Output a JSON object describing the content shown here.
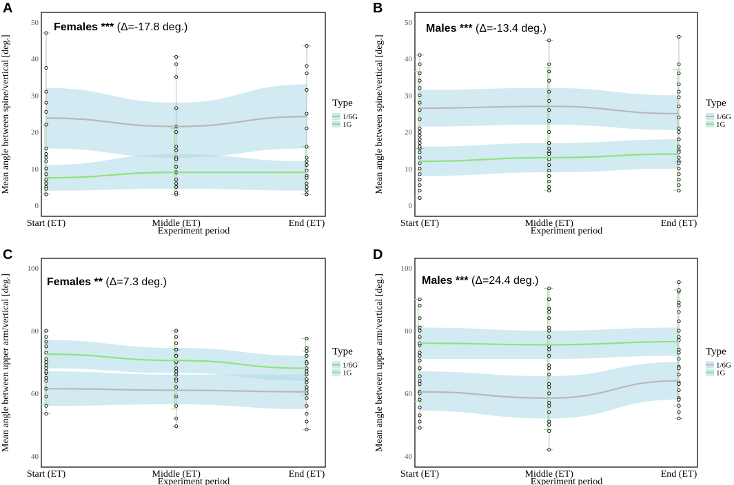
{
  "chart_data": [
    {
      "type": "line",
      "panel": "A",
      "annotation": {
        "prefix": "Females ***",
        "suffix": " (Δ=-17.8 deg.)"
      },
      "xlabel": "Experiment period",
      "ylabel": "Mean angle between spine/vertical [deg.]",
      "categories": [
        "Start (ET)",
        "Middle (ET)",
        "End (ET)"
      ],
      "ylim": [
        0,
        50
      ],
      "yticks": [
        0,
        10,
        20,
        30,
        40,
        50
      ],
      "legend": {
        "title": "Type",
        "position": "right"
      },
      "series": [
        {
          "name": "1/6G",
          "color": "#b8b8b8",
          "values": [
            23.8,
            21.5,
            24.2
          ],
          "band_lower": [
            15.5,
            13.0,
            15.5
          ],
          "band_upper": [
            32.0,
            28.0,
            33.0
          ],
          "err_low": [
            3,
            3,
            3
          ],
          "err_high": [
            47,
            40.5,
            43.5
          ],
          "points": [
            [
              3,
              5,
              7,
              10,
              13,
              15.5,
              22,
              25.5,
              28,
              31,
              37.5,
              47
            ],
            [
              3,
              6,
              9,
              13,
              16,
              20,
              21.5,
              26.5,
              35,
              38.5,
              40.5
            ],
            [
              3,
              5,
              8,
              12,
              16,
              21,
              25,
              31.5,
              36,
              38,
              43.5
            ]
          ]
        },
        {
          "name": "1G",
          "color": "#8fe37d",
          "values": [
            7.5,
            9.0,
            9.0
          ],
          "band_lower": [
            4.0,
            4.5,
            4.0
          ],
          "band_upper": [
            11.0,
            14.0,
            12.0
          ],
          "err_low": [
            3,
            3,
            3
          ],
          "err_high": [
            22,
            21,
            16
          ],
          "points": [
            [
              3,
              4.5,
              6,
              7,
              8.5,
              10,
              12,
              14
            ],
            [
              3.5,
              5,
              7,
              9,
              10.5,
              12.5,
              15
            ],
            [
              3,
              4,
              6,
              7.5,
              9.5,
              11,
              13
            ]
          ]
        }
      ]
    },
    {
      "type": "line",
      "panel": "B",
      "annotation": {
        "prefix": "Males ***",
        "suffix": " (Δ=-13.4 deg.)"
      },
      "xlabel": "Experiment period",
      "ylabel": "Mean angle between spine/vertical [deg.]",
      "categories": [
        "Start (ET)",
        "Middle (ET)",
        "End (ET)"
      ],
      "ylim": [
        0,
        50
      ],
      "yticks": [
        0,
        10,
        20,
        30,
        40,
        50
      ],
      "legend": {
        "title": "Type",
        "position": "right"
      },
      "series": [
        {
          "name": "1/6G",
          "color": "#b8b8b8",
          "values": [
            26.5,
            27.0,
            25.0
          ],
          "band_lower": [
            21.5,
            22.0,
            20.5
          ],
          "band_upper": [
            31.5,
            32.0,
            30.0
          ],
          "err_low": [
            15.5,
            14.5,
            12
          ],
          "err_high": [
            41,
            45,
            46
          ],
          "points": [
            [
              15.5,
              17,
              19,
              21,
              23.5,
              26,
              28,
              30,
              32,
              34,
              36,
              38.5,
              41
            ],
            [
              14.5,
              17,
              20,
              23,
              26,
              28.5,
              31,
              34,
              36.5,
              38.5,
              45
            ],
            [
              12,
              15,
              18,
              21,
              24,
              27,
              29.5,
              31,
              33,
              36,
              38.5,
              46
            ]
          ]
        },
        {
          "name": "1G",
          "color": "#8fe37d",
          "values": [
            12.0,
            13.0,
            14.0
          ],
          "band_lower": [
            8.0,
            9.0,
            10.0
          ],
          "band_upper": [
            16.0,
            17.0,
            18.0
          ],
          "err_low": [
            2,
            4,
            4
          ],
          "err_high": [
            36.5,
            37.5,
            37
          ],
          "points": [
            [
              2,
              4,
              5.5,
              7,
              8.5,
              10,
              11.5,
              13,
              14.5,
              16,
              18,
              20
            ],
            [
              4,
              5,
              6.5,
              8,
              9.5,
              11,
              12.5,
              14,
              15.5,
              17
            ],
            [
              4,
              5.5,
              7,
              8.5,
              10,
              11.5,
              13,
              14.5,
              16,
              18,
              20
            ]
          ]
        }
      ]
    },
    {
      "type": "line",
      "panel": "C",
      "annotation": {
        "prefix": "Females **",
        "suffix": " (Δ=7.3 deg.)"
      },
      "xlabel": "Experiment period",
      "ylabel": "Mean angle between upper arm/vertical [deg.]",
      "categories": [
        "Start (ET)",
        "Middle (ET)",
        "End (ET)"
      ],
      "ylim": [
        40,
        100
      ],
      "yticks": [
        40,
        60,
        80,
        100
      ],
      "legend": {
        "title": "Type",
        "position": "right"
      },
      "series": [
        {
          "name": "1/6G",
          "color": "#b8b8b8",
          "values": [
            61.5,
            61.0,
            60.5
          ],
          "band_lower": [
            56.0,
            56.5,
            55.0
          ],
          "band_upper": [
            67.0,
            66.0,
            66.0
          ],
          "err_low": [
            53.5,
            49.5,
            48.5
          ],
          "err_high": [
            70,
            74,
            73.5
          ],
          "points": [
            [
              53.5,
              56,
              59,
              61.5,
              64,
              66.5,
              68,
              70
            ],
            [
              49.5,
              52,
              56,
              59,
              62,
              64.5,
              67,
              70,
              72,
              74
            ],
            [
              48.5,
              51,
              53.5,
              56,
              58.5,
              61,
              63.5,
              66,
              68,
              70,
              72,
              73.5
            ]
          ]
        },
        {
          "name": "1G",
          "color": "#8fe37d",
          "values": [
            72.5,
            70.5,
            68.0
          ],
          "band_lower": [
            68.0,
            66.5,
            64.0
          ],
          "band_upper": [
            77.0,
            74.5,
            72.0
          ],
          "err_low": [
            56.5,
            55,
            59.5
          ],
          "err_high": [
            80,
            80,
            77.5
          ],
          "points": [
            [
              65,
              67,
              69,
              71,
              73,
              75,
              76.5,
              78,
              80
            ],
            [
              64,
              66,
              68,
              70,
              72,
              74,
              76,
              78,
              80
            ],
            [
              60,
              62,
              64.5,
              67,
              69.5,
              72,
              74.5,
              77.5
            ]
          ]
        }
      ]
    },
    {
      "type": "line",
      "panel": "D",
      "annotation": {
        "prefix": "Males ***",
        "suffix": " (Δ=24.4 deg.)"
      },
      "xlabel": "Experiment period",
      "ylabel": "Mean angle between upper arm/vertical [deg.]",
      "categories": [
        "Start (ET)",
        "Middle (ET)",
        "End (ET)"
      ],
      "ylim": [
        40,
        100
      ],
      "yticks": [
        40,
        60,
        80,
        100
      ],
      "legend": {
        "title": "Type",
        "position": "right"
      },
      "series": [
        {
          "name": "1/6G",
          "color": "#b8b8b8",
          "values": [
            60.5,
            58.5,
            64.0
          ],
          "band_lower": [
            54.5,
            52.0,
            58.0
          ],
          "band_upper": [
            67.0,
            65.5,
            70.0
          ],
          "err_low": [
            49,
            42,
            52
          ],
          "err_high": [
            81.5,
            93.5,
            95.5
          ],
          "points": [
            [
              49,
              51,
              53,
              55.5,
              58,
              60.5,
              63,
              65.5,
              68,
              70.5,
              73,
              75.5,
              78,
              81
            ],
            [
              42,
              48,
              51,
              54,
              57,
              60,
              63,
              66,
              69,
              72,
              75,
              78,
              81,
              84,
              87,
              90,
              93.5
            ],
            [
              52,
              54,
              56,
              58.5,
              61,
              63.5,
              66,
              68.5,
              71,
              74,
              77,
              80,
              83,
              86,
              89,
              92.5,
              95.5
            ]
          ]
        },
        {
          "name": "1G",
          "color": "#8fe37d",
          "values": [
            76.0,
            75.5,
            76.5
          ],
          "band_lower": [
            71.0,
            71.0,
            72.0
          ],
          "band_upper": [
            81.0,
            80.0,
            81.0
          ],
          "err_low": [
            57.5,
            48.5,
            56
          ],
          "err_high": [
            90,
            93.5,
            93
          ],
          "points": [
            [
              60,
              64,
              68,
              72,
              76,
              80,
              84,
              88,
              90
            ],
            [
              50,
              56,
              62,
              68,
              74,
              80,
              86,
              90
            ],
            [
              58,
              63,
              68,
              73,
              78,
              83,
              88,
              93
            ]
          ]
        }
      ]
    }
  ]
}
